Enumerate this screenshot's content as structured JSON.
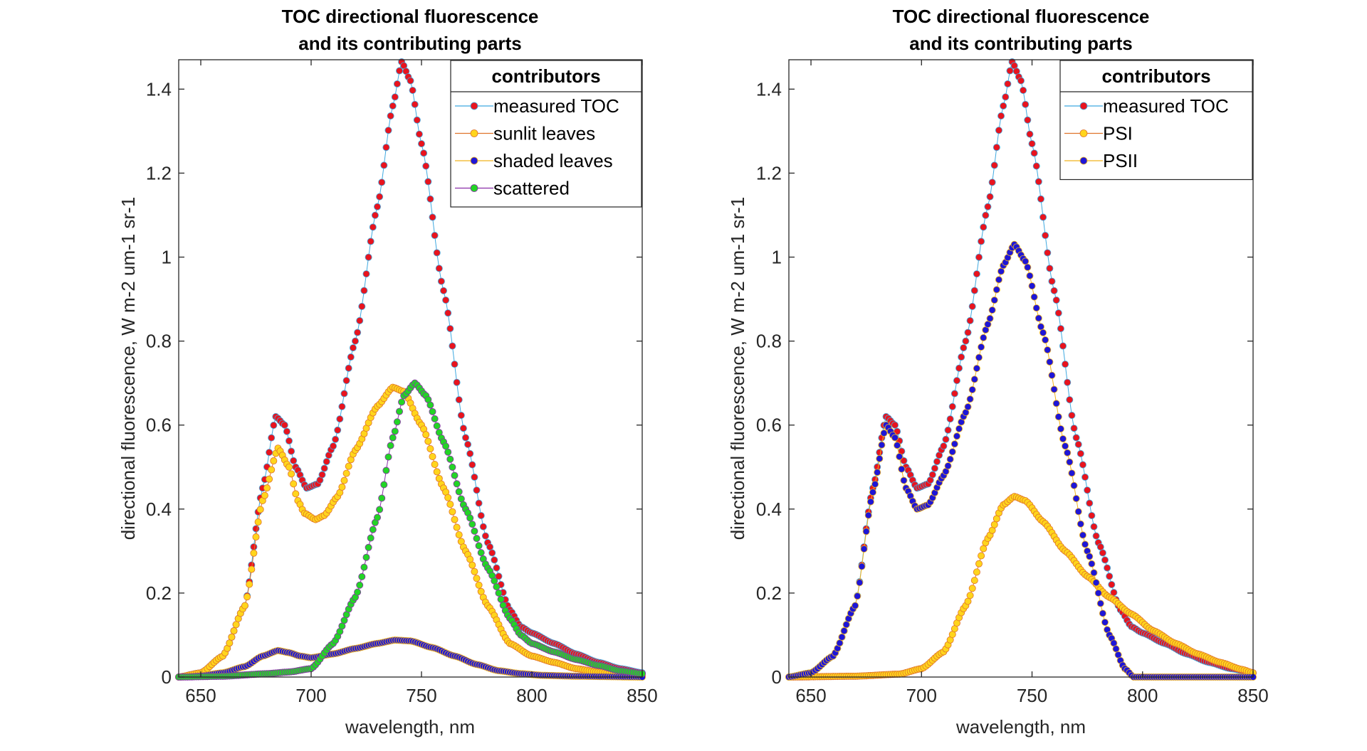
{
  "figure": {
    "panels": [
      "left",
      "right"
    ]
  },
  "chart_data": [
    {
      "type": "scatter",
      "title": [
        "TOC directional fluorescence",
        "and its contributing parts"
      ],
      "xlabel": "wavelength, nm",
      "ylabel": "directional fluorescence, W m-2 um-1 sr-1",
      "xlim": [
        640,
        850
      ],
      "ylim": [
        0,
        1.47
      ],
      "xticks": [
        650,
        700,
        750,
        800,
        850
      ],
      "xtick_labels": [
        "650",
        "700",
        "750",
        "800",
        "850"
      ],
      "yticks": [
        0,
        0.2,
        0.4,
        0.6,
        0.8,
        1,
        1.2,
        1.4
      ],
      "ytick_labels": [
        "0",
        "0.2",
        "0.4",
        "0.6",
        "0.8",
        "1",
        "1.2",
        "1.4"
      ],
      "grid": false,
      "legend": {
        "title": "contributors",
        "position": "top-right"
      },
      "x_start": 640,
      "x_step": 1,
      "x_end": 850,
      "series": [
        {
          "name": "measured TOC",
          "marker_color": "#e8141e",
          "line_color": "#3fa9e0",
          "points": [
            [
              640,
              0
            ],
            [
              650,
              0.01
            ],
            [
              660,
              0.05
            ],
            [
              670,
              0.17
            ],
            [
              678,
              0.45
            ],
            [
              684,
              0.62
            ],
            [
              688,
              0.6
            ],
            [
              693,
              0.5
            ],
            [
              698,
              0.45
            ],
            [
              703,
              0.46
            ],
            [
              710,
              0.55
            ],
            [
              720,
              0.8
            ],
            [
              730,
              1.12
            ],
            [
              737,
              1.36
            ],
            [
              741,
              1.465
            ],
            [
              745,
              1.42
            ],
            [
              750,
              1.27
            ],
            [
              760,
              0.92
            ],
            [
              770,
              0.57
            ],
            [
              780,
              0.32
            ],
            [
              790,
              0.16
            ],
            [
              795,
              0.12
            ],
            [
              800,
              0.105
            ],
            [
              810,
              0.08
            ],
            [
              820,
              0.055
            ],
            [
              830,
              0.035
            ],
            [
              840,
              0.02
            ],
            [
              850,
              0.01
            ]
          ]
        },
        {
          "name": "sunlit leaves",
          "marker_color": "#ffd51c",
          "line_color": "#e0732a",
          "points": [
            [
              640,
              0
            ],
            [
              650,
              0.01
            ],
            [
              660,
              0.05
            ],
            [
              670,
              0.17
            ],
            [
              678,
              0.42
            ],
            [
              685,
              0.545
            ],
            [
              690,
              0.5
            ],
            [
              694,
              0.42
            ],
            [
              697,
              0.39
            ],
            [
              702,
              0.375
            ],
            [
              706,
              0.385
            ],
            [
              712,
              0.43
            ],
            [
              720,
              0.54
            ],
            [
              730,
              0.645
            ],
            [
              737,
              0.69
            ],
            [
              742,
              0.68
            ],
            [
              750,
              0.6
            ],
            [
              760,
              0.45
            ],
            [
              770,
              0.3
            ],
            [
              780,
              0.17
            ],
            [
              790,
              0.08
            ],
            [
              800,
              0.05
            ],
            [
              810,
              0.035
            ],
            [
              820,
              0.02
            ],
            [
              830,
              0.012
            ],
            [
              840,
              0.006
            ],
            [
              850,
              0.003
            ]
          ]
        },
        {
          "name": "shaded leaves",
          "marker_color": "#1e16d6",
          "line_color": "#f1b21c",
          "points": [
            [
              640,
              0
            ],
            [
              650,
              0.003
            ],
            [
              660,
              0.01
            ],
            [
              670,
              0.025
            ],
            [
              678,
              0.05
            ],
            [
              685,
              0.063
            ],
            [
              690,
              0.058
            ],
            [
              695,
              0.05
            ],
            [
              700,
              0.046
            ],
            [
              710,
              0.055
            ],
            [
              720,
              0.068
            ],
            [
              730,
              0.08
            ],
            [
              738,
              0.088
            ],
            [
              745,
              0.086
            ],
            [
              755,
              0.07
            ],
            [
              765,
              0.05
            ],
            [
              775,
              0.03
            ],
            [
              785,
              0.015
            ],
            [
              795,
              0.008
            ],
            [
              805,
              0.004
            ],
            [
              820,
              0.002
            ],
            [
              850,
              0
            ]
          ]
        },
        {
          "name": "scattered",
          "marker_color": "#23d426",
          "line_color": "#8a2fa8",
          "points": [
            [
              640,
              0
            ],
            [
              660,
              0.002
            ],
            [
              680,
              0.008
            ],
            [
              690,
              0.012
            ],
            [
              700,
              0.02
            ],
            [
              710,
              0.08
            ],
            [
              720,
              0.19
            ],
            [
              730,
              0.38
            ],
            [
              737,
              0.57
            ],
            [
              742,
              0.67
            ],
            [
              747,
              0.7
            ],
            [
              752,
              0.67
            ],
            [
              760,
              0.56
            ],
            [
              770,
              0.4
            ],
            [
              780,
              0.26
            ],
            [
              790,
              0.14
            ],
            [
              795,
              0.1
            ],
            [
              800,
              0.08
            ],
            [
              810,
              0.06
            ],
            [
              820,
              0.042
            ],
            [
              830,
              0.028
            ],
            [
              840,
              0.015
            ],
            [
              850,
              0.008
            ]
          ]
        }
      ]
    },
    {
      "type": "scatter",
      "title": [
        "TOC directional fluorescence",
        "and its contributing parts"
      ],
      "xlabel": "wavelength, nm",
      "ylabel": "directional fluorescence, W m-2 um-1 sr-1",
      "xlim": [
        640,
        850
      ],
      "ylim": [
        0,
        1.47
      ],
      "xticks": [
        650,
        700,
        750,
        800,
        850
      ],
      "xtick_labels": [
        "650",
        "700",
        "750",
        "800",
        "850"
      ],
      "yticks": [
        0,
        0.2,
        0.4,
        0.6,
        0.8,
        1,
        1.2,
        1.4
      ],
      "ytick_labels": [
        "0",
        "0.2",
        "0.4",
        "0.6",
        "0.8",
        "1",
        "1.2",
        "1.4"
      ],
      "grid": false,
      "legend": {
        "title": "contributors",
        "position": "top-right"
      },
      "x_start": 640,
      "x_step": 1,
      "x_end": 850,
      "series": [
        {
          "name": "measured TOC",
          "marker_color": "#e8141e",
          "line_color": "#3fa9e0",
          "points": [
            [
              640,
              0
            ],
            [
              650,
              0.01
            ],
            [
              660,
              0.05
            ],
            [
              670,
              0.17
            ],
            [
              678,
              0.45
            ],
            [
              684,
              0.62
            ],
            [
              688,
              0.6
            ],
            [
              693,
              0.5
            ],
            [
              698,
              0.45
            ],
            [
              703,
              0.46
            ],
            [
              710,
              0.55
            ],
            [
              720,
              0.8
            ],
            [
              730,
              1.12
            ],
            [
              737,
              1.36
            ],
            [
              741,
              1.465
            ],
            [
              745,
              1.42
            ],
            [
              750,
              1.27
            ],
            [
              760,
              0.92
            ],
            [
              770,
              0.57
            ],
            [
              780,
              0.32
            ],
            [
              790,
              0.16
            ],
            [
              795,
              0.12
            ],
            [
              800,
              0.105
            ],
            [
              810,
              0.08
            ],
            [
              820,
              0.055
            ],
            [
              830,
              0.035
            ],
            [
              840,
              0.02
            ],
            [
              850,
              0.01
            ]
          ]
        },
        {
          "name": "PSI",
          "marker_color": "#ffd51c",
          "line_color": "#e0732a",
          "points": [
            [
              640,
              0
            ],
            [
              670,
              0.002
            ],
            [
              690,
              0.007
            ],
            [
              700,
              0.02
            ],
            [
              710,
              0.06
            ],
            [
              720,
              0.17
            ],
            [
              730,
              0.33
            ],
            [
              737,
              0.41
            ],
            [
              742,
              0.43
            ],
            [
              747,
              0.42
            ],
            [
              755,
              0.37
            ],
            [
              765,
              0.3
            ],
            [
              775,
              0.24
            ],
            [
              785,
              0.19
            ],
            [
              795,
              0.15
            ],
            [
              805,
              0.11
            ],
            [
              815,
              0.08
            ],
            [
              825,
              0.055
            ],
            [
              835,
              0.035
            ],
            [
              845,
              0.018
            ],
            [
              850,
              0.01
            ]
          ]
        },
        {
          "name": "PSII",
          "marker_color": "#1e16d6",
          "line_color": "#f1b21c",
          "points": [
            [
              640,
              0
            ],
            [
              650,
              0.01
            ],
            [
              660,
              0.05
            ],
            [
              670,
              0.17
            ],
            [
              678,
              0.44
            ],
            [
              684,
              0.6
            ],
            [
              688,
              0.57
            ],
            [
              693,
              0.45
            ],
            [
              698,
              0.4
            ],
            [
              703,
              0.41
            ],
            [
              710,
              0.48
            ],
            [
              720,
              0.63
            ],
            [
              730,
              0.84
            ],
            [
              737,
              0.98
            ],
            [
              742,
              1.03
            ],
            [
              747,
              0.99
            ],
            [
              755,
              0.82
            ],
            [
              765,
              0.55
            ],
            [
              775,
              0.3
            ],
            [
              785,
              0.1
            ],
            [
              792,
              0.02
            ],
            [
              796,
              0
            ],
            [
              850,
              0
            ]
          ]
        }
      ]
    }
  ]
}
